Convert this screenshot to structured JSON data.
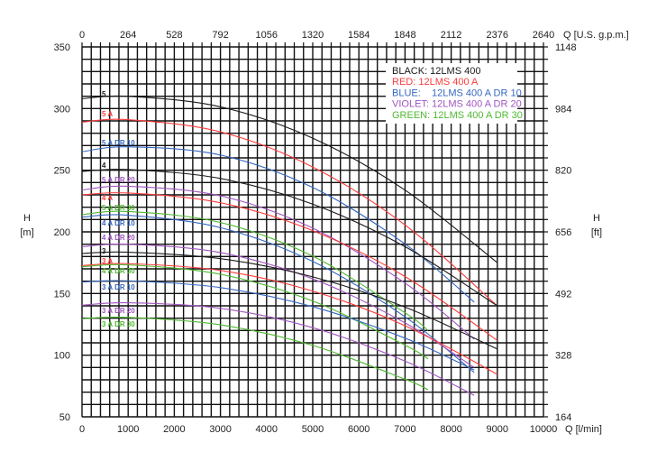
{
  "chart_data": {
    "type": "line",
    "x_bottom": {
      "label": "Q [l/min]",
      "range": [
        0,
        10000
      ],
      "ticks": [
        0,
        1000,
        2000,
        3000,
        4000,
        5000,
        6000,
        7000,
        8000,
        9000,
        10000
      ],
      "minor_step": 200
    },
    "x_top": {
      "label": "Q [U.S. g.p.m.]",
      "ticks": [
        "0",
        "264",
        "528",
        "792",
        "1056",
        "1320",
        "1584",
        "1848",
        "2112",
        "2376",
        "2640"
      ]
    },
    "y_left": {
      "label_line1": "H",
      "label_line2": "[m]",
      "range": [
        50,
        350
      ],
      "ticks": [
        50,
        100,
        150,
        200,
        250,
        300,
        350
      ],
      "minor_step": 10
    },
    "y_right": {
      "label_line1": "H",
      "label_line2": "[ft]",
      "ticks": [
        "164",
        "328",
        "492",
        "656",
        "820",
        "984",
        "1148"
      ]
    },
    "grid": true,
    "legend_placement": "top-right",
    "legend": [
      {
        "text": "BLACK: 12LMS 400",
        "color": "#1a1a1a"
      },
      {
        "text": "RED: 12LMS 400 A",
        "color": "#ff3b3b"
      },
      {
        "text": "BLUE:    12LMS 400 A DR 10",
        "color": "#3567c0"
      },
      {
        "text": "VIOLET: 12LMS 400 A DR 20",
        "color": "#a055c0"
      },
      {
        "text": "GREEN: 12LMS 400 A DR 30",
        "color": "#4fb832"
      }
    ],
    "series": [
      {
        "name": "5",
        "color": "#1a1a1a",
        "x": [
          0,
          1000,
          3000,
          5000,
          7000,
          9000
        ],
        "y": [
          308,
          310,
          301.4,
          276,
          233.9,
          175
        ]
      },
      {
        "name": "5 A",
        "color": "#ff3b3b",
        "x": [
          0,
          1000,
          3000,
          5000,
          7000,
          9000
        ],
        "y": [
          289,
          291,
          281.1,
          252.6,
          205.6,
          140
        ]
      },
      {
        "name": "5 A DR 10",
        "color": "#3567c0",
        "x": [
          0,
          1000,
          3000,
          5000,
          7000,
          8500
        ],
        "y": [
          265,
          269,
          262.3,
          236,
          190.2,
          143
        ]
      },
      {
        "name": "4",
        "color": "#1a1a1a",
        "x": [
          0,
          1000,
          3000,
          5000,
          7000,
          9000
        ],
        "y": [
          249,
          250.5,
          243.3,
          222.5,
          188,
          140
        ]
      },
      {
        "name": "5 A DR 20",
        "color": "#a055c0",
        "x": [
          0,
          1000,
          3000,
          5000,
          7000,
          8500
        ],
        "y": [
          234,
          237,
          229.2,
          203,
          158.5,
          113
        ]
      },
      {
        "name": "4 A",
        "color": "#ff3b3b",
        "x": [
          0,
          1000,
          3000,
          5000,
          7000,
          9000
        ],
        "y": [
          230,
          231.5,
          223.6,
          201,
          163.8,
          112
        ]
      },
      {
        "name": "5 A DR 30",
        "color": "#4fb832",
        "x": [
          0,
          1000,
          3000,
          5000,
          7000,
          7500
        ],
        "y": [
          214,
          216.5,
          207.6,
          180.3,
          134.4,
          120
        ]
      },
      {
        "name": "4 A DR 10",
        "color": "#3567c0",
        "x": [
          0,
          1000,
          3000,
          5000,
          7000,
          8500
        ],
        "y": [
          212,
          213.5,
          203.4,
          176,
          131.1,
          86
        ]
      },
      {
        "name": "4 A DR 20",
        "color": "#a055c0",
        "x": [
          0,
          1000,
          3000,
          5000,
          7000,
          8500
        ],
        "y": [
          188,
          190,
          183.2,
          161.9,
          126.2,
          90
        ]
      },
      {
        "name": "3",
        "color": "#1a1a1a",
        "x": [
          0,
          1000,
          3000,
          5000,
          7000,
          9000
        ],
        "y": [
          182.5,
          183.5,
          178.3,
          163.5,
          139,
          105
        ]
      },
      {
        "name": "3 A",
        "color": "#ff3b3b",
        "x": [
          0,
          1000,
          3000,
          5000,
          7000,
          9000
        ],
        "y": [
          172.7,
          174.2,
          168.7,
          152,
          123.9,
          84.5
        ]
      },
      {
        "name": "4 A DR 30",
        "color": "#4fb832",
        "x": [
          0,
          1000,
          3000,
          5000,
          7000,
          7500
        ],
        "y": [
          171.7,
          173.2,
          165.6,
          143.9,
          108.1,
          97
        ]
      },
      {
        "name": "3 A DR 10",
        "color": "#3567c0",
        "x": [
          0,
          1000,
          3000,
          5000,
          7000,
          8500
        ],
        "y": [
          159.3,
          160.3,
          154.8,
          139.3,
          113.8,
          88
        ]
      },
      {
        "name": "3 A DR 20",
        "color": "#a055c0",
        "x": [
          0,
          1000,
          3000,
          5000,
          7000,
          8500
        ],
        "y": [
          140.5,
          142.5,
          138,
          122.3,
          95.2,
          67.4
        ]
      },
      {
        "name": "3 A DR 30",
        "color": "#4fb832",
        "x": [
          0,
          1000,
          3000,
          5000,
          7000,
          7500
        ],
        "y": [
          129.6,
          130.6,
          124.6,
          107.9,
          80.5,
          72
        ]
      }
    ]
  }
}
